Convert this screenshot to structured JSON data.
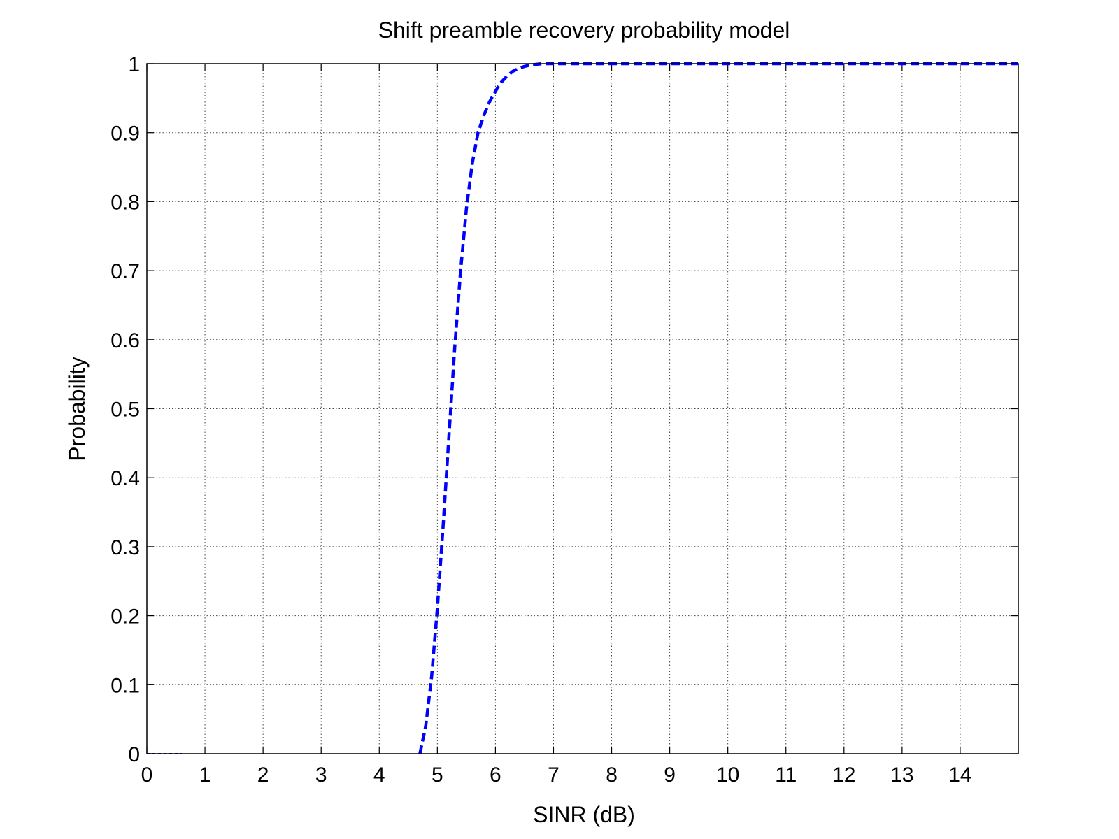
{
  "chart_data": {
    "type": "line",
    "title": "Shift preamble recovery probability model",
    "xlabel": "SINR (dB)",
    "ylabel": "Probability",
    "xlim": [
      0,
      15
    ],
    "ylim": [
      0,
      1
    ],
    "xticks": [
      0,
      1,
      2,
      3,
      4,
      5,
      6,
      7,
      8,
      9,
      10,
      11,
      12,
      13,
      14
    ],
    "yticks": [
      0,
      0.1,
      0.2,
      0.3,
      0.4,
      0.5,
      0.6,
      0.7,
      0.8,
      0.9,
      1
    ],
    "grid": true,
    "legend": "none",
    "series": [
      {
        "color": "#0000ff",
        "style": "dashed",
        "x": [
          0,
          0.6
        ],
        "y": [
          0,
          0
        ]
      },
      {
        "color": "#0000ff",
        "style": "dashed",
        "x": [
          4.7,
          4.8,
          4.9,
          5.0,
          5.1,
          5.2,
          5.3,
          5.4,
          5.5,
          5.6,
          5.7,
          5.8,
          5.9,
          6.0,
          6.1,
          6.2,
          6.3,
          6.4,
          6.5,
          6.6,
          6.7,
          6.8,
          7.0,
          7.5,
          8,
          10,
          12,
          14,
          15
        ],
        "y": [
          0.0,
          0.04,
          0.11,
          0.21,
          0.33,
          0.46,
          0.59,
          0.7,
          0.79,
          0.855,
          0.9,
          0.925,
          0.945,
          0.96,
          0.973,
          0.982,
          0.989,
          0.993,
          0.996,
          0.998,
          0.999,
          1.0,
          1.0,
          1.0,
          1.0,
          1.0,
          1.0,
          1.0,
          1.0
        ]
      }
    ]
  }
}
